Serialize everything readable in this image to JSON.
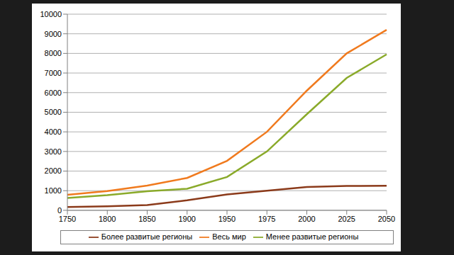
{
  "chart_data": {
    "type": "line",
    "categories": [
      "1750",
      "1800",
      "1850",
      "1900",
      "1950",
      "1975",
      "2000",
      "2025",
      "2050"
    ],
    "series": [
      {
        "name": "Весь мир",
        "color": "#f07a1e",
        "values": [
          790,
          980,
          1260,
          1650,
          2520,
          4000,
          6100,
          8000,
          9200
        ]
      },
      {
        "name": "Более развитые регионы",
        "color": "#8b3a1a",
        "values": [
          170,
          200,
          270,
          510,
          810,
          1000,
          1190,
          1240,
          1250
        ]
      },
      {
        "name": "Менее развитые регионы",
        "color": "#8aaa2a",
        "values": [
          630,
          770,
          970,
          1100,
          1700,
          3000,
          4900,
          6750,
          7950
        ]
      }
    ],
    "ylim": [
      0,
      10000
    ],
    "yticks": [
      0,
      1000,
      2000,
      3000,
      4000,
      5000,
      6000,
      7000,
      8000,
      9000,
      10000
    ],
    "grid": true,
    "legend": "bottom"
  }
}
